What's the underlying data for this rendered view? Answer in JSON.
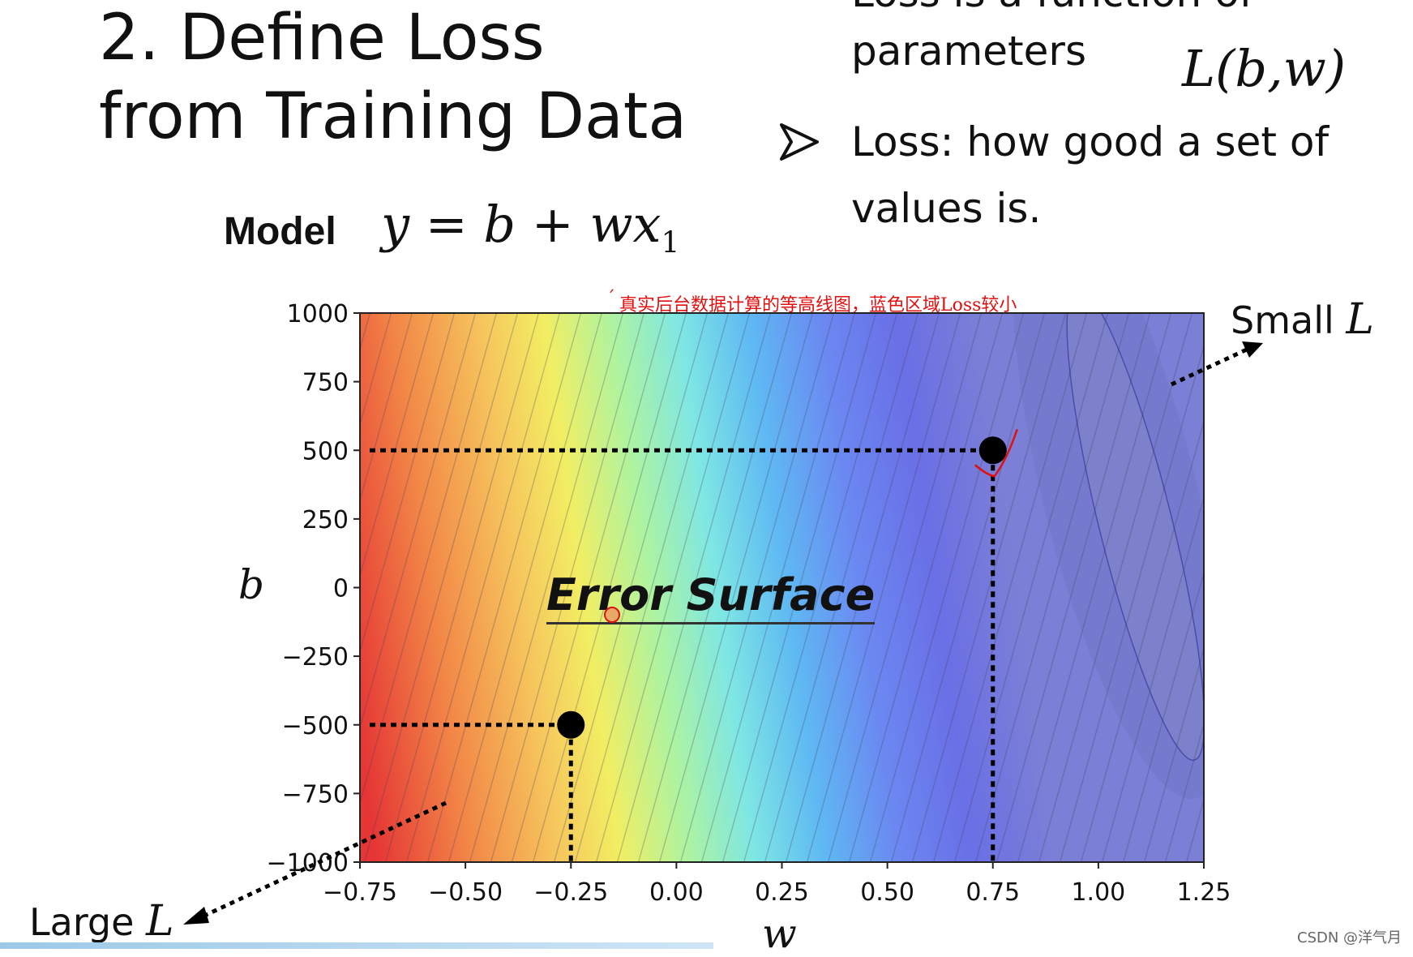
{
  "slide": {
    "title_line1": "2. Define Loss",
    "title_line2": "from Training Data",
    "bullet_top_partial": "Loss is a function of",
    "bullet_top_line2": "parameters",
    "loss_formula": "L(b,w)",
    "bullet2_line1": "Loss: how good a set of",
    "bullet2_line2": "values is.",
    "model_label": "Model",
    "model_formula_main": "y = b + wx",
    "model_formula_sub": "1",
    "annotation_cn": "真实后台数据计算的等高线图，蓝色区域Loss较小",
    "annotation_mark": "ˊ",
    "error_surface_label": "Error Surface",
    "large_label": "Large",
    "small_label": "Small",
    "l_symbol": "L",
    "watermark": "CSDN @洋气月",
    "icons": {
      "bullet": "arrowhead-bullet-icon",
      "cursor": "red-cursor-icon",
      "checkmark": "red-check-icon"
    }
  },
  "chart_data": {
    "type": "heatmap",
    "description_kind": "filled contour plot",
    "xlabel": "w",
    "ylabel": "b",
    "xlim": [
      -0.75,
      1.25
    ],
    "ylim": [
      -1000,
      1000
    ],
    "x_ticks": [
      -0.75,
      -0.5,
      -0.25,
      0.0,
      0.25,
      0.5,
      0.75,
      1.0,
      1.25
    ],
    "x_tick_labels": [
      "−0.75",
      "−0.50",
      "−0.25",
      "0.00",
      "0.25",
      "0.50",
      "0.75",
      "1.00",
      "1.25"
    ],
    "y_ticks": [
      1000,
      750,
      500,
      250,
      0,
      -250,
      -500,
      -750,
      -1000
    ],
    "y_tick_labels": [
      "1000",
      "750",
      "500",
      "250",
      "0",
      "−250",
      "−500",
      "−750",
      "−1000"
    ],
    "colormap": "jet (red = large loss, blue = small loss)",
    "minimum_region": {
      "w": 1.05,
      "b": 350
    },
    "points": [
      {
        "w": 0.75,
        "b": 500
      },
      {
        "w": -0.25,
        "b": -500
      }
    ],
    "grid": false,
    "colors": {
      "large": "#e53535",
      "mid": "#f2ee63",
      "small": "#6e72dd"
    }
  }
}
